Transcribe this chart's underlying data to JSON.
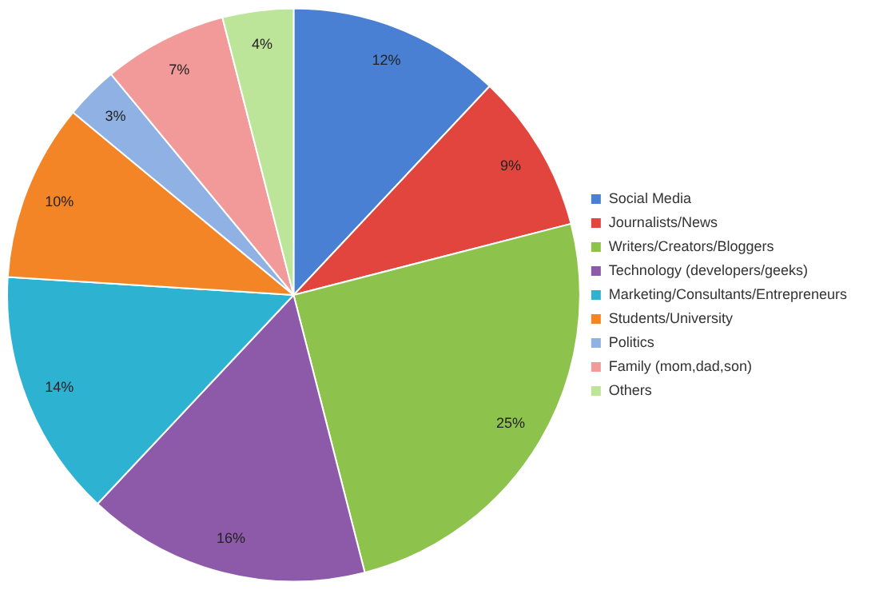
{
  "chart_data": {
    "type": "pie",
    "categories": [
      "Social Media",
      "Journalists/News",
      "Writers/Creators/Bloggers",
      "Technology (developers/geeks)",
      "Marketing/Consultants/Entrepreneurs",
      "Students/University",
      "Politics",
      "Family (mom,dad,son)",
      "Others"
    ],
    "values": [
      12,
      9,
      25,
      16,
      14,
      10,
      3,
      7,
      4
    ],
    "value_labels": [
      "12%",
      "9%",
      "25%",
      "16%",
      "14%",
      "10%",
      "3%",
      "7%",
      "4%"
    ],
    "colors": [
      "#4a80d4",
      "#e2453e",
      "#8dc24c",
      "#8d5aaa",
      "#2eb2d2",
      "#f38526",
      "#8fb1e3",
      "#f29a9a",
      "#bde59a"
    ],
    "legend": "right"
  }
}
